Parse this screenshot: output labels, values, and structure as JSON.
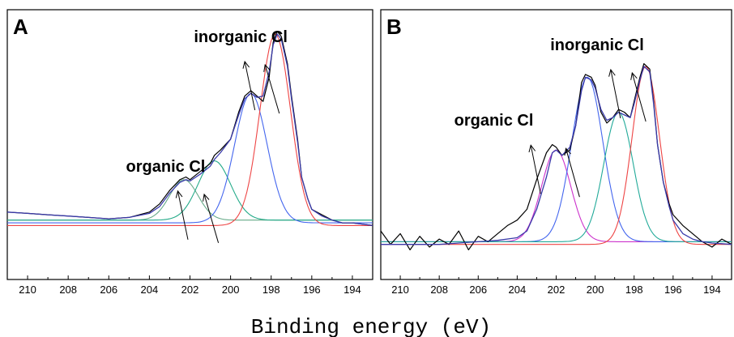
{
  "shared_xlabel": "Binding energy (eV)",
  "chart_data": [
    {
      "panel": "A",
      "type": "line",
      "xlabel": "",
      "ylabel": "",
      "xlim": [
        211,
        193
      ],
      "x_reversed": true,
      "xticks": [
        210,
        208,
        206,
        204,
        202,
        200,
        198,
        196,
        194
      ],
      "ylim": [
        0,
        100
      ],
      "annotations": [
        {
          "text": "inorganic Cl",
          "peaks": [
            199.0,
            197.8
          ],
          "label_x": 199.5,
          "label_y": 88
        },
        {
          "text": "organic Cl",
          "peaks": [
            202.3,
            200.8
          ],
          "label_x": 203.2,
          "label_y": 40
        }
      ],
      "series": [
        {
          "role": "raw",
          "color": "#000000",
          "x": [
            211,
            210,
            209,
            208,
            207,
            206,
            205,
            204,
            203.5,
            203,
            202.5,
            202.2,
            202,
            201.5,
            201,
            200.8,
            200.5,
            200,
            199.6,
            199.3,
            199,
            198.7,
            198.4,
            198.1,
            197.9,
            197.7,
            197.5,
            197.2,
            197,
            196.7,
            196.5,
            196.2,
            196,
            195.5,
            195,
            194.5,
            194,
            193.5,
            193
          ],
          "y": [
            25,
            24.5,
            24,
            23.5,
            23,
            22.5,
            23,
            25,
            28,
            33,
            37,
            38,
            37,
            40,
            43,
            46,
            48,
            52,
            62,
            68,
            70,
            68,
            66,
            75,
            88,
            92,
            90,
            80,
            68,
            52,
            38,
            30,
            26,
            24,
            22,
            21,
            21,
            20.5,
            20
          ]
        },
        {
          "role": "fit",
          "color": "#3a3aaa",
          "x": [
            211,
            210,
            209,
            208,
            207,
            206,
            205,
            204,
            203.5,
            203,
            202.5,
            202.2,
            202,
            201.5,
            201,
            200.8,
            200.5,
            200,
            199.6,
            199.3,
            199,
            198.7,
            198.4,
            198.1,
            197.9,
            197.7,
            197.5,
            197.2,
            197,
            196.7,
            196.5,
            196.2,
            196,
            195.5,
            195,
            194.5,
            194,
            193.5,
            193
          ],
          "y": [
            25,
            24.5,
            24,
            23.5,
            23,
            22.5,
            23,
            24.5,
            27,
            32,
            36,
            37,
            36.5,
            39,
            42,
            44.5,
            47,
            52,
            61,
            67,
            69,
            67.5,
            68,
            77,
            87,
            91,
            89,
            79,
            67,
            51,
            38,
            30,
            26,
            23.5,
            22,
            21,
            21,
            20.5,
            20
          ]
        },
        {
          "role": "component",
          "color": "#66aa88",
          "center": 202.3,
          "height": 37,
          "width": 0.7,
          "baseline": 22
        },
        {
          "role": "component",
          "color": "#22aa88",
          "center": 200.8,
          "height": 44,
          "width": 0.8,
          "baseline": 22
        },
        {
          "role": "component",
          "color": "#4466ee",
          "center": 199.0,
          "height": 69,
          "width": 0.8,
          "baseline": 21
        },
        {
          "role": "component",
          "color": "#ee4444",
          "center": 197.8,
          "height": 91,
          "width": 0.75,
          "baseline": 20
        }
      ]
    },
    {
      "panel": "B",
      "type": "line",
      "xlabel": "",
      "ylabel": "",
      "xlim": [
        211,
        193
      ],
      "x_reversed": true,
      "xticks": [
        210,
        208,
        206,
        204,
        202,
        200,
        198,
        196,
        194
      ],
      "ylim": [
        0,
        100
      ],
      "annotations": [
        {
          "text": "inorganic Cl",
          "peaks": [
            198.9,
            197.6
          ],
          "label_x": 199.9,
          "label_y": 85
        },
        {
          "text": "organic Cl",
          "peaks": [
            203.0,
            201.0
          ],
          "label_x": 205.2,
          "label_y": 57
        }
      ],
      "series": [
        {
          "role": "raw",
          "color": "#000000",
          "x": [
            211,
            210.5,
            210,
            209.5,
            209,
            208.5,
            208,
            207.5,
            207,
            206.5,
            206,
            205.5,
            205,
            204.5,
            204,
            203.5,
            203,
            202.5,
            202.2,
            202,
            201.7,
            201.3,
            201,
            200.7,
            200.5,
            200.2,
            200,
            199.7,
            199.4,
            199.1,
            198.8,
            198.5,
            198.2,
            198,
            197.7,
            197.5,
            197.2,
            197,
            196.8,
            196.5,
            196.2,
            196,
            195.5,
            195,
            194.5,
            194,
            193.5,
            193
          ],
          "y": [
            18,
            13,
            17,
            11,
            16,
            12,
            15,
            13,
            18,
            11,
            16,
            14,
            17,
            20,
            22,
            26,
            37,
            47,
            50,
            49,
            46,
            48,
            57,
            73,
            76,
            75,
            72,
            62,
            58,
            60,
            63,
            62,
            60,
            66,
            75,
            80,
            78,
            66,
            50,
            36,
            28,
            24,
            20,
            17,
            14,
            12,
            15,
            13
          ]
        },
        {
          "role": "fit",
          "color": "#3a3aaa",
          "x": [
            211,
            210,
            209,
            208,
            207,
            206,
            205,
            204,
            203.5,
            203,
            202.5,
            202.2,
            202,
            201.7,
            201.3,
            201,
            200.7,
            200.5,
            200.2,
            200,
            199.7,
            199.4,
            199.1,
            198.8,
            198.5,
            198.2,
            198,
            197.7,
            197.5,
            197.2,
            197,
            196.8,
            196.5,
            196.2,
            196,
            195.5,
            195,
            194.5,
            194,
            193
          ],
          "y": [
            13,
            13,
            13,
            13,
            13.5,
            14,
            14.5,
            15.5,
            18,
            26,
            38,
            47,
            48,
            46,
            49,
            57,
            70,
            75,
            74,
            71,
            63,
            59,
            60,
            62,
            61,
            60,
            65,
            74,
            79,
            77,
            65,
            50,
            36,
            27,
            22,
            17,
            15,
            14,
            13.5,
            13
          ]
        },
        {
          "role": "component",
          "color": "#cc33cc",
          "center": 202.0,
          "height": 48,
          "width": 0.75,
          "baseline": 14
        },
        {
          "role": "component",
          "color": "#4466ee",
          "center": 200.4,
          "height": 75,
          "width": 0.8,
          "baseline": 14
        },
        {
          "role": "component",
          "color": "#22aa99",
          "center": 198.8,
          "height": 62,
          "width": 0.75,
          "baseline": 14
        },
        {
          "role": "component",
          "color": "#ee4444",
          "center": 197.4,
          "height": 79,
          "width": 0.7,
          "baseline": 13
        }
      ]
    }
  ]
}
